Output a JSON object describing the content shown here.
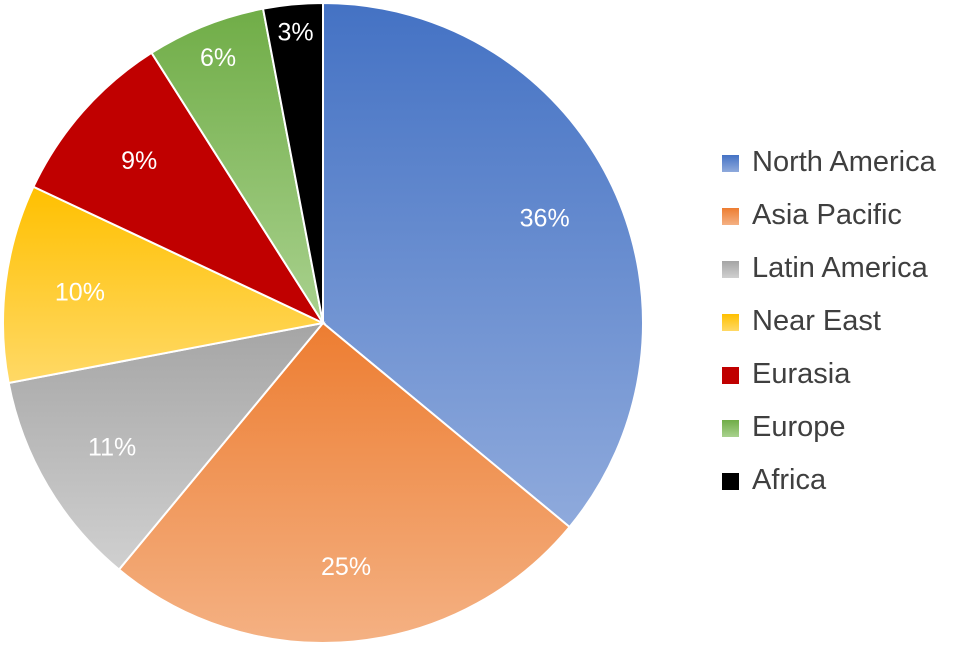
{
  "chart_data": {
    "type": "pie",
    "title": "",
    "slices": [
      {
        "name": "North America",
        "value": 36,
        "label": "36%",
        "color": "#4472c4",
        "color_light": "#8faadc"
      },
      {
        "name": "Asia Pacific",
        "value": 25,
        "label": "25%",
        "color": "#ed7d31",
        "color_light": "#f4b183"
      },
      {
        "name": "Latin America",
        "value": 11,
        "label": "11%",
        "color": "#a5a5a5",
        "color_light": "#d0d0d0"
      },
      {
        "name": "Near East",
        "value": 10,
        "label": "10%",
        "color": "#ffc000",
        "color_light": "#ffd966"
      },
      {
        "name": "Eurasia",
        "value": 9,
        "label": "9%",
        "color": "#c00000",
        "color_light": "#c00000"
      },
      {
        "name": "Europe",
        "value": 6,
        "label": "6%",
        "color": "#70ad47",
        "color_light": "#a9d18e"
      },
      {
        "name": "Africa",
        "value": 3,
        "label": "3%",
        "color": "#000000",
        "color_light": "#000000"
      }
    ],
    "legend_position": "right",
    "start_angle": "top, clockwise"
  }
}
